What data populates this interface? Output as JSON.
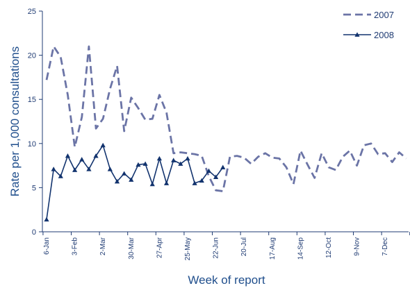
{
  "chart_data": {
    "type": "line",
    "xlabel": "Week of report",
    "ylabel": "Rate per 1,000 consultations",
    "ylim": [
      0,
      25
    ],
    "y_ticks": [
      0,
      5,
      10,
      15,
      20,
      25
    ],
    "x_ticks": [
      {
        "week": 1,
        "label": "6-Jan"
      },
      {
        "week": 5,
        "label": "3-Feb"
      },
      {
        "week": 9,
        "label": "2-Mar"
      },
      {
        "week": 13,
        "label": "30-Mar"
      },
      {
        "week": 17,
        "label": "27-Apr"
      },
      {
        "week": 21,
        "label": "25-May"
      },
      {
        "week": 25,
        "label": "22-Jun"
      },
      {
        "week": 29,
        "label": "20-Jul"
      },
      {
        "week": 33,
        "label": "17-Aug"
      },
      {
        "week": 37,
        "label": "14-Sep"
      },
      {
        "week": 41,
        "label": "12-Oct"
      },
      {
        "week": 45,
        "label": "9-Nov"
      },
      {
        "week": 49,
        "label": "7-Dec"
      }
    ],
    "legend_position": "top-right",
    "series": [
      {
        "name": "2007",
        "color": "#6b74a6",
        "style": "dashed",
        "weeks": [
          1,
          2,
          3,
          4,
          5,
          6,
          7,
          8,
          9,
          10,
          11,
          12,
          13,
          14,
          15,
          16,
          17,
          18,
          19,
          20,
          21,
          22,
          23,
          24,
          25,
          26,
          27,
          28,
          29,
          30,
          31,
          32,
          33,
          34,
          35,
          36,
          37,
          38,
          39,
          40,
          41,
          42,
          43,
          44,
          45,
          46,
          47,
          48,
          49,
          50,
          51,
          52
        ],
        "values": [
          17.2,
          21.0,
          19.8,
          15.5,
          9.6,
          13.0,
          21.0,
          11.7,
          12.8,
          16.2,
          18.8,
          11.4,
          15.2,
          14.0,
          12.7,
          12.8,
          15.5,
          13.5,
          8.9,
          9.0,
          8.9,
          8.8,
          8.6,
          6.3,
          4.7,
          4.6,
          8.5,
          8.6,
          8.4,
          7.7,
          8.5,
          8.9,
          8.4,
          8.3,
          7.3,
          5.4,
          9.2,
          7.6,
          6.1,
          8.9,
          7.3,
          7.0,
          8.5,
          9.2,
          7.5,
          9.8,
          10.0,
          8.8,
          8.9,
          7.9,
          9.0,
          8.3
        ]
      },
      {
        "name": "2008",
        "color": "#12336e",
        "style": "solid-triangles",
        "weeks": [
          1,
          2,
          3,
          4,
          5,
          6,
          7,
          8,
          9,
          10,
          11,
          12,
          13,
          14,
          15,
          16,
          17,
          18,
          19,
          20,
          21,
          22,
          23,
          24,
          25,
          26
        ],
        "values": [
          1.4,
          7.1,
          6.3,
          8.6,
          7.0,
          8.2,
          7.1,
          8.6,
          9.8,
          7.1,
          5.7,
          6.6,
          5.9,
          7.6,
          7.7,
          5.4,
          8.3,
          5.5,
          8.1,
          7.7,
          8.3,
          5.5,
          5.8,
          6.9,
          6.2,
          7.3
        ]
      }
    ]
  }
}
